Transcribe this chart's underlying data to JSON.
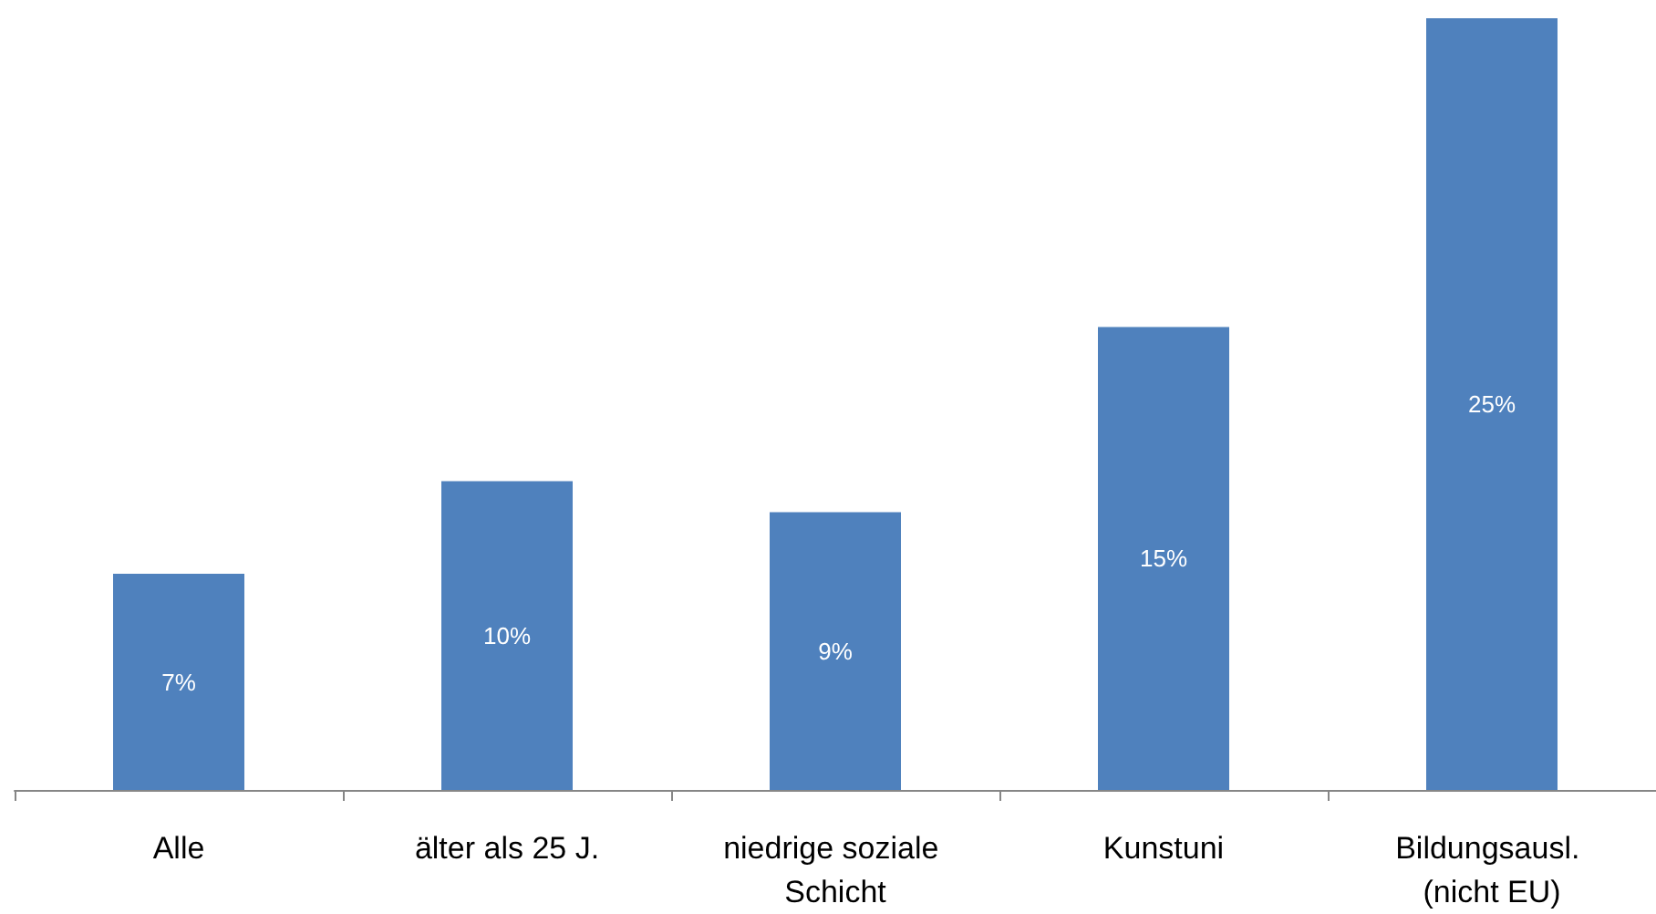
{
  "chart_data": {
    "type": "bar",
    "categories": [
      "Alle",
      "älter als 25 J.",
      "niedrige soziale Schicht",
      "Kunstuni",
      "Bildungsausl. (nicht EU)"
    ],
    "values": [
      7,
      10,
      9,
      15,
      25
    ],
    "value_labels": [
      "7%",
      "10%",
      "9%",
      "15%",
      "25%"
    ],
    "color": "#4f81bd",
    "ylim": [
      0,
      25
    ]
  }
}
